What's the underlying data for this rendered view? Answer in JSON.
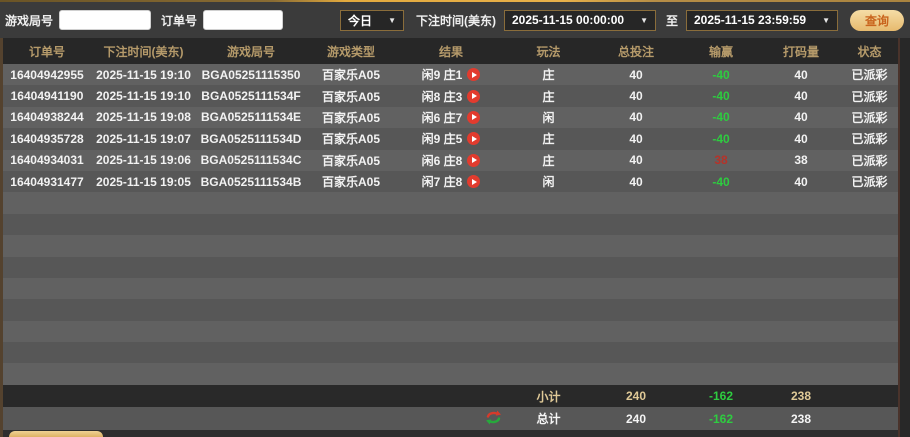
{
  "toolbar": {
    "game_round_label": "游戏局号",
    "order_no_label": "订单号",
    "period_selector": "今日",
    "bet_time_label": "下注时间(美东)",
    "start_time": "2025-11-15 00:00:00",
    "to_label": "至",
    "end_time": "2025-11-15 23:59:59",
    "query_button": "查询"
  },
  "table": {
    "headers": [
      "订单号",
      "下注时间(美东)",
      "游戏局号",
      "游戏类型",
      "结果",
      "玩法",
      "总投注",
      "输赢",
      "打码量",
      "状态"
    ],
    "rows": [
      {
        "order_no": "16404942955",
        "bet_time": "2025-11-15 19:10",
        "round": "BGA05251115350",
        "game_type": "百家乐A05",
        "result": "闲9 庄1",
        "play": "庄",
        "total_bet": "40",
        "win_loss": "-40",
        "win_loss_sign": "negative",
        "turnover": "40",
        "status": "已派彩"
      },
      {
        "order_no": "16404941190",
        "bet_time": "2025-11-15 19:10",
        "round": "BGA0525111534F",
        "game_type": "百家乐A05",
        "result": "闲8 庄3",
        "play": "庄",
        "total_bet": "40",
        "win_loss": "-40",
        "win_loss_sign": "negative",
        "turnover": "40",
        "status": "已派彩"
      },
      {
        "order_no": "16404938244",
        "bet_time": "2025-11-15 19:08",
        "round": "BGA0525111534E",
        "game_type": "百家乐A05",
        "result": "闲6 庄7",
        "play": "闲",
        "total_bet": "40",
        "win_loss": "-40",
        "win_loss_sign": "negative",
        "turnover": "40",
        "status": "已派彩"
      },
      {
        "order_no": "16404935728",
        "bet_time": "2025-11-15 19:07",
        "round": "BGA0525111534D",
        "game_type": "百家乐A05",
        "result": "闲9 庄5",
        "play": "庄",
        "total_bet": "40",
        "win_loss": "-40",
        "win_loss_sign": "negative",
        "turnover": "40",
        "status": "已派彩"
      },
      {
        "order_no": "16404934031",
        "bet_time": "2025-11-15 19:06",
        "round": "BGA0525111534C",
        "game_type": "百家乐A05",
        "result": "闲6 庄8",
        "play": "庄",
        "total_bet": "40",
        "win_loss": "38",
        "win_loss_sign": "positive",
        "turnover": "38",
        "status": "已派彩"
      },
      {
        "order_no": "16404931477",
        "bet_time": "2025-11-15 19:05",
        "round": "BGA0525111534B",
        "game_type": "百家乐A05",
        "result": "闲7 庄8",
        "play": "闲",
        "total_bet": "40",
        "win_loss": "-40",
        "win_loss_sign": "negative",
        "turnover": "40",
        "status": "已派彩"
      }
    ],
    "empty_row_count": 9,
    "subtotal": {
      "label": "小计",
      "total_bet": "240",
      "win_loss": "-162",
      "win_loss_sign": "negative",
      "turnover": "238"
    },
    "total": {
      "label": "总计",
      "total_bet": "240",
      "win_loss": "-162",
      "win_loss_sign": "negative",
      "turnover": "238"
    }
  },
  "colors": {
    "header_text": "#b59a6a",
    "loss_green": "#2ecc40",
    "win_red": "#b5332a",
    "accent_gold": "#e7b04a"
  }
}
